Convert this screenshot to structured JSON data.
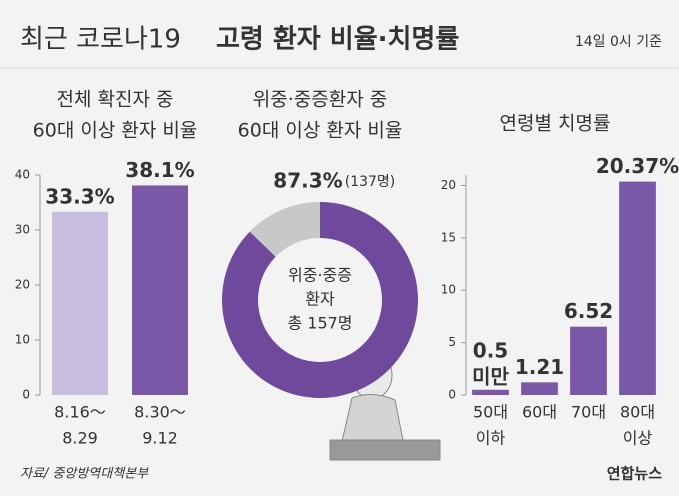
{
  "header": {
    "title_light": "최근 코로나19",
    "title_bold": "고령 환자 비율·치명률",
    "note": "14일 0시 기준"
  },
  "footer": {
    "source": "자료/ 중앙방역대책본부",
    "logo": "연합뉴스"
  },
  "chart_data": [
    {
      "type": "bar",
      "title": [
        "전체 확진자 중",
        "60대 이상 환자 비율"
      ],
      "categories": [
        [
          "8.16～",
          "8.29"
        ],
        [
          "8.30～",
          "9.12"
        ]
      ],
      "values": [
        33.3,
        38.1
      ],
      "value_labels": [
        [
          "33.3%"
        ],
        [
          "38.1%"
        ]
      ],
      "colors": [
        "#c9bde0",
        "#7b57a8"
      ],
      "ylim": [
        0,
        40
      ],
      "yticks": [
        0,
        10,
        20,
        30,
        40
      ]
    },
    {
      "type": "pie",
      "title": [
        "위중·중증환자 중",
        "60대 이상 환자 비율"
      ],
      "values": [
        87.3,
        12.7
      ],
      "value_labels": [
        "87.3%",
        null
      ],
      "annotation": "(137명)",
      "center_text": [
        "위중·중증",
        "환자",
        "총 157명"
      ],
      "colors": [
        "#6f4a9c",
        "#c8c8c8"
      ]
    },
    {
      "type": "bar",
      "title": [
        "연령별 치명률"
      ],
      "categories": [
        [
          "50대",
          "이하"
        ],
        [
          "60대"
        ],
        [
          "70대"
        ],
        [
          "80대",
          "이상"
        ]
      ],
      "values": [
        0.5,
        1.21,
        6.52,
        20.37
      ],
      "value_labels": [
        [
          "0.5",
          "미만"
        ],
        [
          "1.21"
        ],
        [
          "6.52"
        ],
        [
          "20.37%"
        ]
      ],
      "colors": [
        "#7b57a8",
        "#7b57a8",
        "#7b57a8",
        "#7b57a8"
      ],
      "ylim": [
        0,
        21
      ],
      "yticks": [
        0,
        5,
        10,
        15,
        20
      ]
    }
  ]
}
